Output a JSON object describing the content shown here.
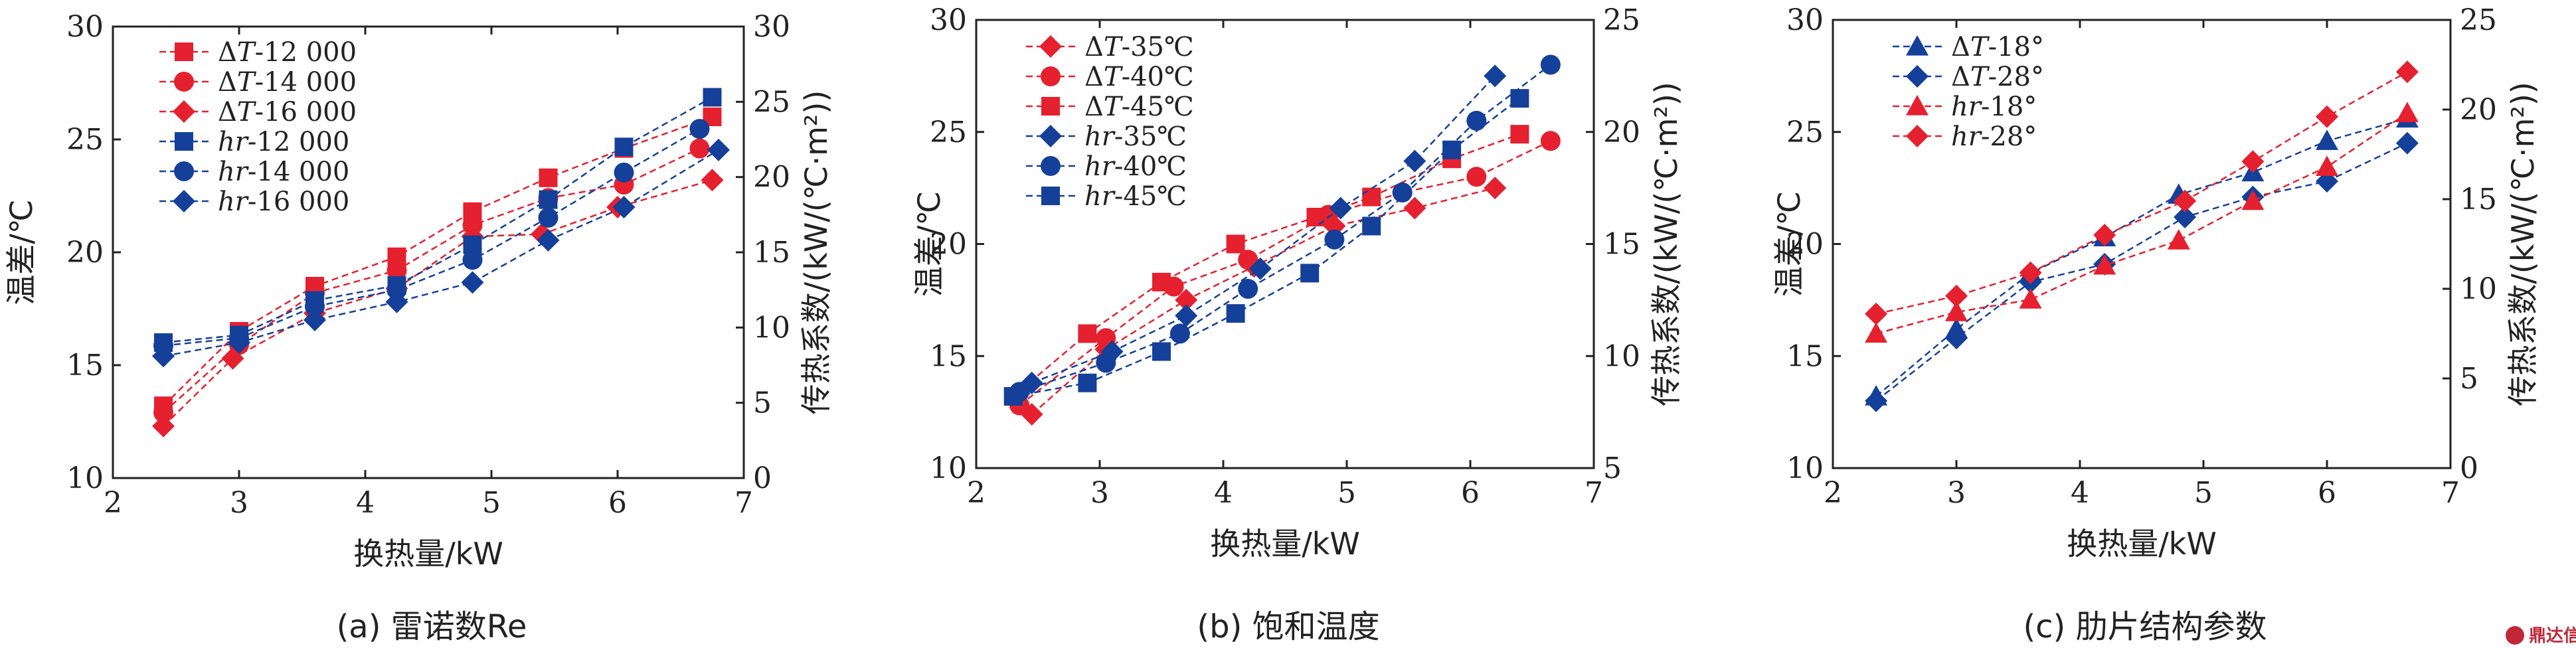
{
  "colors": {
    "red": "#e5202f",
    "blue": "#14409a"
  },
  "watermark": "鼎达信",
  "chart_data": [
    {
      "type": "line",
      "caption": "(a) 雷诺数Re",
      "xlabel": "换热量/kW",
      "ylabel_left": "温差/℃",
      "ylabel_right": "传热系数/(kW/(℃·m²))",
      "xlim": [
        2,
        7
      ],
      "ylim_left": [
        10,
        30
      ],
      "ylim_right": [
        0,
        30
      ],
      "xticks": [
        2,
        3,
        4,
        5,
        6,
        7
      ],
      "yticks_left": [
        10,
        15,
        20,
        25,
        30
      ],
      "yticks_right": [
        0,
        5,
        10,
        15,
        20,
        25,
        30
      ],
      "legend_position": "top-left",
      "series": [
        {
          "name": "ΔT-12 000",
          "color": "#e5202f",
          "marker": "square",
          "axis": "left",
          "x": [
            2.4,
            3.0,
            3.6,
            4.25,
            4.85,
            5.45,
            6.05,
            6.75
          ],
          "y": [
            13.2,
            16.5,
            18.5,
            19.8,
            21.8,
            23.3,
            24.6,
            26.0
          ]
        },
        {
          "name": "ΔT-14 000",
          "color": "#e5202f",
          "marker": "circle",
          "axis": "left",
          "x": [
            2.4,
            3.0,
            3.6,
            4.25,
            4.85,
            5.45,
            6.05,
            6.65
          ],
          "y": [
            12.9,
            15.9,
            18.2,
            19.2,
            21.2,
            22.4,
            23.0,
            24.6
          ]
        },
        {
          "name": "ΔT-16 000",
          "color": "#e5202f",
          "marker": "diamond",
          "axis": "left",
          "x": [
            2.4,
            2.95,
            3.6,
            4.25,
            4.85,
            5.4,
            6.0,
            6.75
          ],
          "y": [
            12.3,
            15.3,
            17.3,
            18.4,
            20.7,
            20.8,
            22.0,
            23.2
          ]
        },
        {
          "name": "hr-12 000",
          "color": "#14409a",
          "marker": "square",
          "axis": "right",
          "x": [
            2.4,
            3.0,
            3.6,
            4.25,
            4.85,
            5.45,
            6.05,
            6.75
          ],
          "y": [
            9.0,
            9.5,
            11.8,
            12.8,
            15.5,
            18.5,
            22.0,
            25.3
          ]
        },
        {
          "name": "hr-14 000",
          "color": "#14409a",
          "marker": "circle",
          "axis": "right",
          "x": [
            2.4,
            3.0,
            3.6,
            4.25,
            4.85,
            5.45,
            6.05,
            6.65
          ],
          "y": [
            8.8,
            9.3,
            11.4,
            12.5,
            14.5,
            17.3,
            20.3,
            23.2
          ]
        },
        {
          "name": "hr-16 000",
          "color": "#14409a",
          "marker": "diamond",
          "axis": "right",
          "x": [
            2.4,
            3.0,
            3.6,
            4.25,
            4.85,
            5.45,
            6.05,
            6.8
          ],
          "y": [
            8.1,
            9.0,
            10.5,
            11.7,
            13.0,
            15.8,
            18.0,
            21.8
          ]
        }
      ]
    },
    {
      "type": "line",
      "caption": "(b) 饱和温度",
      "xlabel": "换热量/kW",
      "ylabel_left": "温差/℃",
      "ylabel_right": "传热系数/(kW/(℃·m²))",
      "xlim": [
        2,
        7
      ],
      "ylim_left": [
        10,
        30
      ],
      "ylim_right": [
        5,
        25
      ],
      "xticks": [
        2,
        3,
        4,
        5,
        6,
        7
      ],
      "yticks_left": [
        10,
        15,
        20,
        25,
        30
      ],
      "yticks_right": [
        5,
        10,
        15,
        20,
        25
      ],
      "legend_position": "top-left",
      "series": [
        {
          "name": "ΔT-35℃",
          "color": "#e5202f",
          "marker": "diamond",
          "axis": "left",
          "x": [
            2.45,
            3.05,
            3.7,
            4.25,
            4.9,
            5.55,
            6.2
          ],
          "y": [
            12.4,
            15.3,
            17.5,
            19.0,
            20.8,
            21.6,
            22.5
          ]
        },
        {
          "name": "ΔT-40℃",
          "color": "#e5202f",
          "marker": "circle",
          "axis": "left",
          "x": [
            2.35,
            3.05,
            3.6,
            4.2,
            4.85,
            5.45,
            6.05,
            6.65
          ],
          "y": [
            12.8,
            15.8,
            18.1,
            19.3,
            21.3,
            22.3,
            23.0,
            24.6
          ]
        },
        {
          "name": "ΔT-45℃",
          "color": "#e5202f",
          "marker": "square",
          "axis": "left",
          "x": [
            2.3,
            2.9,
            3.5,
            4.1,
            4.75,
            5.2,
            5.85,
            6.4
          ],
          "y": [
            13.2,
            16.0,
            18.3,
            20.0,
            21.2,
            22.1,
            23.8,
            24.9
          ]
        },
        {
          "name": "hr-35℃",
          "color": "#14409a",
          "marker": "diamond",
          "axis": "right",
          "x": [
            2.45,
            3.1,
            3.7,
            4.3,
            4.95,
            5.55,
            6.2
          ],
          "y": [
            8.8,
            10.2,
            11.8,
            13.9,
            16.6,
            18.7,
            22.5
          ]
        },
        {
          "name": "hr-40℃",
          "color": "#14409a",
          "marker": "circle",
          "axis": "right",
          "x": [
            2.35,
            3.05,
            3.65,
            4.2,
            4.9,
            5.45,
            6.05,
            6.65
          ],
          "y": [
            8.4,
            9.7,
            11.0,
            13.0,
            15.2,
            17.3,
            20.5,
            23.0
          ]
        },
        {
          "name": "hr-45℃",
          "color": "#14409a",
          "marker": "square",
          "axis": "right",
          "x": [
            2.3,
            2.9,
            3.5,
            4.1,
            4.7,
            5.2,
            5.85,
            6.4
          ],
          "y": [
            8.2,
            8.8,
            10.2,
            11.9,
            13.7,
            15.8,
            19.2,
            21.5
          ]
        }
      ]
    },
    {
      "type": "line",
      "caption": "(c) 肋片结构参数",
      "xlabel": "换热量/kW",
      "ylabel_left": "温差/℃",
      "ylabel_right": "传热系数/(kW/(℃·m²))",
      "xlim": [
        2,
        7
      ],
      "ylim_left": [
        10,
        30
      ],
      "ylim_right": [
        0,
        25
      ],
      "xticks": [
        2,
        3,
        4,
        5,
        6,
        7
      ],
      "yticks_left": [
        10,
        15,
        20,
        25,
        30
      ],
      "yticks_right": [
        0,
        5,
        10,
        15,
        20,
        25
      ],
      "legend_position": "top-left",
      "series": [
        {
          "name": "ΔT-18°",
          "color": "#14409a",
          "marker": "triangle",
          "axis": "left",
          "x": [
            2.35,
            3.0,
            3.6,
            4.2,
            4.8,
            5.4,
            6.0,
            6.65
          ],
          "y": [
            13.2,
            16.2,
            18.7,
            20.3,
            22.2,
            23.2,
            24.6,
            25.6
          ]
        },
        {
          "name": "ΔT-28°",
          "color": "#14409a",
          "marker": "diamond",
          "axis": "left",
          "x": [
            2.35,
            3.0,
            3.6,
            4.2,
            4.85,
            5.4,
            6.0,
            6.65
          ],
          "y": [
            13.0,
            15.8,
            18.3,
            19.1,
            21.2,
            22.1,
            22.8,
            24.5
          ]
        },
        {
          "name": "hr-18°",
          "color": "#e5202f",
          "marker": "triangle",
          "axis": "right",
          "x": [
            2.35,
            3.0,
            3.6,
            4.2,
            4.8,
            5.4,
            6.0,
            6.65
          ],
          "y": [
            7.5,
            8.7,
            9.4,
            11.3,
            12.7,
            14.9,
            16.8,
            19.8
          ]
        },
        {
          "name": "hr-28°",
          "color": "#e5202f",
          "marker": "diamond",
          "axis": "right",
          "x": [
            2.35,
            3.0,
            3.6,
            4.2,
            4.85,
            5.4,
            6.0,
            6.65
          ],
          "y": [
            8.6,
            9.6,
            10.9,
            13.0,
            14.9,
            17.1,
            19.6,
            22.1
          ]
        }
      ]
    }
  ]
}
